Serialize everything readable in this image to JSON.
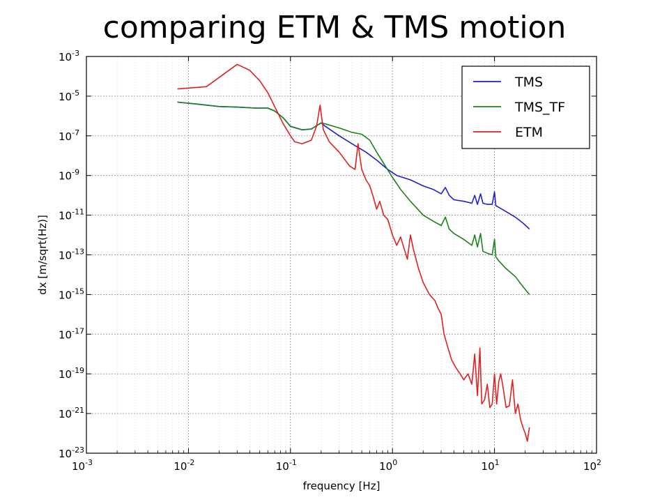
{
  "slide": {
    "title": "comparing ETM & TMS motion"
  },
  "chart_data": {
    "type": "line",
    "title": "",
    "xlabel": "frequency [Hz]",
    "ylabel": "dx [m/sqrt(Hz)]",
    "xscale": "log",
    "yscale": "log",
    "xlim": [
      0.001,
      100
    ],
    "ylim": [
      1e-23,
      0.001
    ],
    "grid": true,
    "legend_position": "top-right",
    "x_ticks": [
      {
        "value": 0.001,
        "base": "10",
        "exp": "-3"
      },
      {
        "value": 0.01,
        "base": "10",
        "exp": "-2"
      },
      {
        "value": 0.1,
        "base": "10",
        "exp": "-1"
      },
      {
        "value": 1,
        "base": "10",
        "exp": "0"
      },
      {
        "value": 10,
        "base": "10",
        "exp": "1"
      },
      {
        "value": 100,
        "base": "10",
        "exp": "2"
      }
    ],
    "y_ticks": [
      {
        "value": 1e-23,
        "base": "10",
        "exp": "-23"
      },
      {
        "value": 1e-21,
        "base": "10",
        "exp": "-21"
      },
      {
        "value": 1e-19,
        "base": "10",
        "exp": "-19"
      },
      {
        "value": 1e-17,
        "base": "10",
        "exp": "-17"
      },
      {
        "value": 1e-15,
        "base": "10",
        "exp": "-15"
      },
      {
        "value": 1e-13,
        "base": "10",
        "exp": "-13"
      },
      {
        "value": 1e-11,
        "base": "10",
        "exp": "-11"
      },
      {
        "value": 1e-09,
        "base": "10",
        "exp": "-9"
      },
      {
        "value": 1e-07,
        "base": "10",
        "exp": "-7"
      },
      {
        "value": 1e-05,
        "base": "10",
        "exp": "-5"
      },
      {
        "value": 0.001,
        "base": "10",
        "exp": "-3"
      }
    ],
    "series": [
      {
        "name": "TMS",
        "color": "#1f1fd2",
        "x": [
          0.0078,
          0.012,
          0.02,
          0.03,
          0.045,
          0.06,
          0.07,
          0.085,
          0.1,
          0.13,
          0.16,
          0.2,
          0.22,
          0.3,
          0.4,
          0.55,
          0.7,
          0.9,
          1.1,
          1.5,
          2.0,
          2.5,
          3.0,
          3.3,
          3.6,
          4.0,
          5.0,
          6.0,
          6.4,
          6.8,
          7.3,
          7.7,
          8.5,
          9.5,
          10.0,
          10.3,
          11.0,
          13.0,
          16.0,
          19.0,
          22.0
        ],
        "y": [
          5e-06,
          4e-06,
          3e-06,
          2.8e-06,
          2.5e-06,
          2.5e-06,
          1.8e-06,
          8e-07,
          3e-07,
          2e-07,
          2.2e-07,
          4.5e-07,
          3e-07,
          1e-07,
          4e-08,
          1.5e-08,
          6e-09,
          2e-09,
          1e-09,
          6e-10,
          3e-10,
          2e-10,
          1.2e-10,
          2.5e-10,
          1e-10,
          6e-11,
          5e-11,
          4e-11,
          1e-10,
          3.5e-11,
          1.2e-10,
          4e-11,
          3.5e-11,
          3.5e-11,
          1.5e-10,
          3e-11,
          2.5e-11,
          1.5e-11,
          8e-12,
          4e-12,
          2e-12
        ]
      },
      {
        "name": "TMS_TF",
        "color": "#1a821a",
        "x": [
          0.0078,
          0.012,
          0.02,
          0.03,
          0.045,
          0.06,
          0.07,
          0.085,
          0.1,
          0.13,
          0.16,
          0.2,
          0.22,
          0.3,
          0.4,
          0.5,
          0.6,
          0.7,
          0.85,
          1.0,
          1.2,
          1.5,
          2.0,
          2.5,
          3.0,
          3.3,
          3.6,
          4.0,
          5.0,
          6.0,
          6.4,
          6.8,
          7.3,
          7.7,
          8.5,
          9.5,
          10.0,
          10.3,
          11.0,
          13.0,
          16.0,
          19.0,
          22.0
        ],
        "y": [
          5e-06,
          4e-06,
          3e-06,
          2.8e-06,
          2.5e-06,
          2.5e-06,
          1.8e-06,
          8e-07,
          3e-07,
          2e-07,
          2.2e-07,
          4.5e-07,
          4e-07,
          2.5e-07,
          1.5e-07,
          1.2e-07,
          6e-08,
          1.5e-08,
          3e-09,
          8e-10,
          2e-10,
          5e-11,
          1e-11,
          5e-12,
          3e-12,
          8e-12,
          2e-12,
          1.2e-12,
          6e-13,
          3e-13,
          1e-12,
          2.5e-13,
          1.2e-12,
          1.5e-13,
          1.2e-13,
          1e-13,
          6e-13,
          8e-14,
          5e-14,
          2e-14,
          8e-15,
          2.5e-15,
          1e-15
        ]
      },
      {
        "name": "ETM",
        "color": "#e02020",
        "x": [
          0.0078,
          0.015,
          0.03,
          0.04,
          0.05,
          0.06,
          0.07,
          0.085,
          0.1,
          0.11,
          0.13,
          0.16,
          0.18,
          0.195,
          0.21,
          0.24,
          0.3,
          0.38,
          0.43,
          0.46,
          0.5,
          0.55,
          0.6,
          0.65,
          0.7,
          0.75,
          0.82,
          0.9,
          1.0,
          1.1,
          1.2,
          1.4,
          1.5,
          1.6,
          1.8,
          2.0,
          2.3,
          2.6,
          2.8,
          3.0,
          3.2,
          3.5,
          3.8,
          4.2,
          4.6,
          5.0,
          5.5,
          6.0,
          6.4,
          6.8,
          7.2,
          7.5,
          8.0,
          8.5,
          9.0,
          9.5,
          10.0,
          10.5,
          11.0,
          11.5,
          12.0,
          13.0,
          14.0,
          15.0,
          16.0,
          17.0,
          18.0,
          19.0,
          20.0,
          21.0,
          22.0
        ],
        "y": [
          2.3e-05,
          3e-05,
          0.0004,
          0.0002,
          6e-05,
          1.5e-05,
          3e-06,
          4e-07,
          1e-07,
          5e-08,
          4e-08,
          6e-08,
          3e-07,
          3.5e-06,
          2e-07,
          5e-08,
          1.5e-08,
          3e-09,
          2e-09,
          4e-08,
          2e-09,
          6e-10,
          3e-10,
          8e-11,
          2e-11,
          5e-11,
          1e-11,
          6e-12,
          1e-12,
          3e-13,
          8e-13,
          6e-14,
          1e-12,
          2e-13,
          2e-14,
          4e-15,
          1e-15,
          5e-16,
          2e-16,
          1e-16,
          1e-17,
          2e-18,
          5e-19,
          2e-19,
          1e-19,
          5e-20,
          1e-19,
          3e-20,
          1e-18,
          8e-21,
          2e-18,
          3e-21,
          5e-21,
          3e-20,
          2e-21,
          3e-21,
          1e-19,
          3e-21,
          4e-20,
          1e-19,
          3e-20,
          2e-21,
          2.5e-21,
          5e-20,
          1e-21,
          3e-21,
          5e-22,
          2e-22,
          1e-22,
          4e-23,
          2e-22
        ]
      }
    ]
  }
}
